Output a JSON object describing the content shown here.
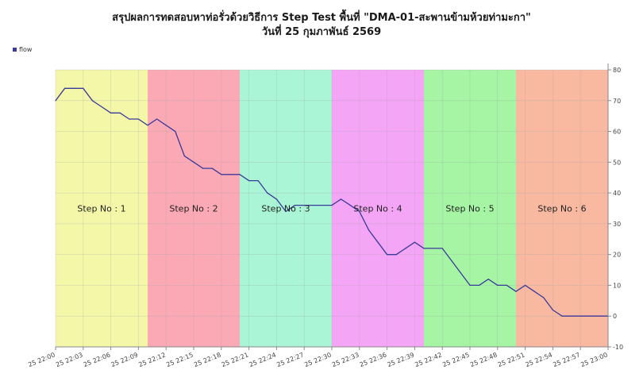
{
  "chart_data": {
    "type": "line",
    "title": "สรุปผลการทดสอบหาท่อรั่วด้วยวิธีการ Step Test พื้นที่ \"DMA-01-สะพานข้ามห้วยท่ามะกา\"",
    "subtitle": "วันที่ 25 กุมภาพันธ์ 2569",
    "xlabel": "",
    "ylabel": "",
    "ylim": [
      -10,
      80
    ],
    "y_ticks": [
      -10,
      0,
      10,
      20,
      30,
      40,
      50,
      60,
      70,
      80
    ],
    "y_axis_side": "right",
    "x_range": [
      "25 22:00",
      "25 23:00"
    ],
    "x_tick_labels": [
      "25 22:00",
      "25 22:03",
      "25 22:06",
      "25 22:09",
      "25 22:12",
      "25 22:15",
      "25 22:18",
      "25 22:21",
      "25 22:24",
      "25 22:27",
      "25 22:30",
      "25 22:33",
      "25 22:36",
      "25 22:39",
      "25 22:42",
      "25 22:45",
      "25 22:48",
      "25 22:51",
      "25 22:54",
      "25 22:57",
      "25 23:00"
    ],
    "grid": true,
    "legend_position": "top-left",
    "series": [
      {
        "name": "flow",
        "color": "#3a3a9a",
        "x": [
          "25 22:00",
          "25 22:01",
          "25 22:02",
          "25 22:03",
          "25 22:04",
          "25 22:05",
          "25 22:06",
          "25 22:07",
          "25 22:08",
          "25 22:09",
          "25 22:10",
          "25 22:11",
          "25 22:12",
          "25 22:13",
          "25 22:14",
          "25 22:15",
          "25 22:16",
          "25 22:17",
          "25 22:18",
          "25 22:19",
          "25 22:20",
          "25 22:21",
          "25 22:22",
          "25 22:23",
          "25 22:24",
          "25 22:25",
          "25 22:26",
          "25 22:27",
          "25 22:28",
          "25 22:29",
          "25 22:30",
          "25 22:31",
          "25 22:32",
          "25 22:33",
          "25 22:34",
          "25 22:35",
          "25 22:36",
          "25 22:37",
          "25 22:38",
          "25 22:39",
          "25 22:40",
          "25 22:41",
          "25 22:42",
          "25 22:43",
          "25 22:44",
          "25 22:45",
          "25 22:46",
          "25 22:47",
          "25 22:48",
          "25 22:49",
          "25 22:50",
          "25 22:51",
          "25 22:52",
          "25 22:53",
          "25 22:54",
          "25 22:55",
          "25 22:56",
          "25 22:57",
          "25 22:58",
          "25 22:59",
          "25 23:00"
        ],
        "values": [
          70,
          74,
          74,
          74,
          70,
          68,
          66,
          66,
          64,
          64,
          62,
          64,
          62,
          60,
          52,
          50,
          48,
          48,
          46,
          46,
          46,
          44,
          44,
          40,
          38,
          34,
          36,
          36,
          36,
          36,
          36,
          38,
          36,
          34,
          28,
          24,
          20,
          20,
          22,
          24,
          22,
          22,
          22,
          18,
          14,
          10,
          10,
          12,
          10,
          10,
          8,
          10,
          8,
          6,
          2,
          0,
          0,
          0,
          0,
          0,
          0
        ]
      }
    ],
    "steps": [
      {
        "label": "Step No : 1",
        "start": "25 22:00",
        "end": "25 22:10",
        "color": "#f4f7a8"
      },
      {
        "label": "Step No : 2",
        "start": "25 22:10",
        "end": "25 22:20",
        "color": "#fba9b5"
      },
      {
        "label": "Step No : 3",
        "start": "25 22:20",
        "end": "25 22:30",
        "color": "#a9f5d6"
      },
      {
        "label": "Step No : 4",
        "start": "25 22:30",
        "end": "25 22:40",
        "color": "#f5a5f5"
      },
      {
        "label": "Step No : 5",
        "start": "25 22:40",
        "end": "25 22:50",
        "color": "#a5f5a5"
      },
      {
        "label": "Step No : 6",
        "start": "25 22:50",
        "end": "25 23:00",
        "color": "#f9b9a1"
      }
    ]
  }
}
